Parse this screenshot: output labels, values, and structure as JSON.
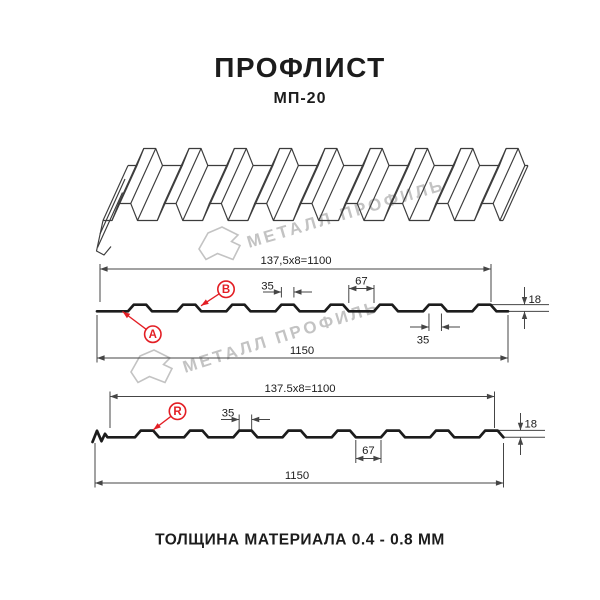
{
  "header": {
    "title": "ПРОФЛИСТ",
    "subtitle": "МП-20"
  },
  "watermark": {
    "text": "МЕТАЛЛ ПРОФИЛЬ"
  },
  "footer": {
    "material_note": "ТОЛЩИНА МАТЕРИАЛА 0.4 - 0.8 ММ"
  },
  "colors": {
    "accent_red": "#e31e24",
    "drawing_line": "#1c1c1c",
    "dimension_line": "#454545",
    "watermark_gray": "#c3c3c3"
  },
  "section_top": {
    "name": "profile section side A/B",
    "module_dim": "137,5x8=1100",
    "overall_width_dim": "1150",
    "crest_top_dim": "35",
    "crest_spacing_dim": "67",
    "height_dim": "18",
    "crest_bottom_dim": "35",
    "label_b": "B",
    "label_a": "A"
  },
  "section_bottom": {
    "name": "profile section side R",
    "module_dim": "137.5x8=1100",
    "overall_width_dim": "1150",
    "crest_top_dim": "35",
    "crest_spacing_dim": "67",
    "height_dim": "18",
    "label_r": "R"
  }
}
